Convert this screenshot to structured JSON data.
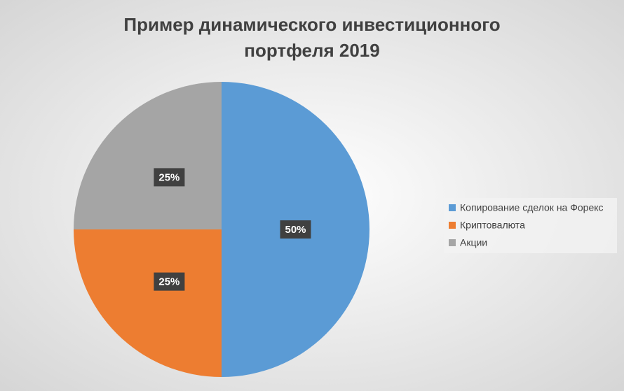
{
  "chart_data": {
    "type": "pie",
    "title": [
      "Пример динамического инвестиционного",
      "портфеля 2019"
    ],
    "categories": [
      "Копирование сделок на Форекс",
      "Криптовалюта",
      "Акции"
    ],
    "values": [
      50,
      25,
      25
    ],
    "value_labels": [
      "50%",
      "25%",
      "25%"
    ],
    "colors": [
      "#5b9bd5",
      "#ed7d31",
      "#a5a5a5"
    ],
    "legend": "right"
  }
}
